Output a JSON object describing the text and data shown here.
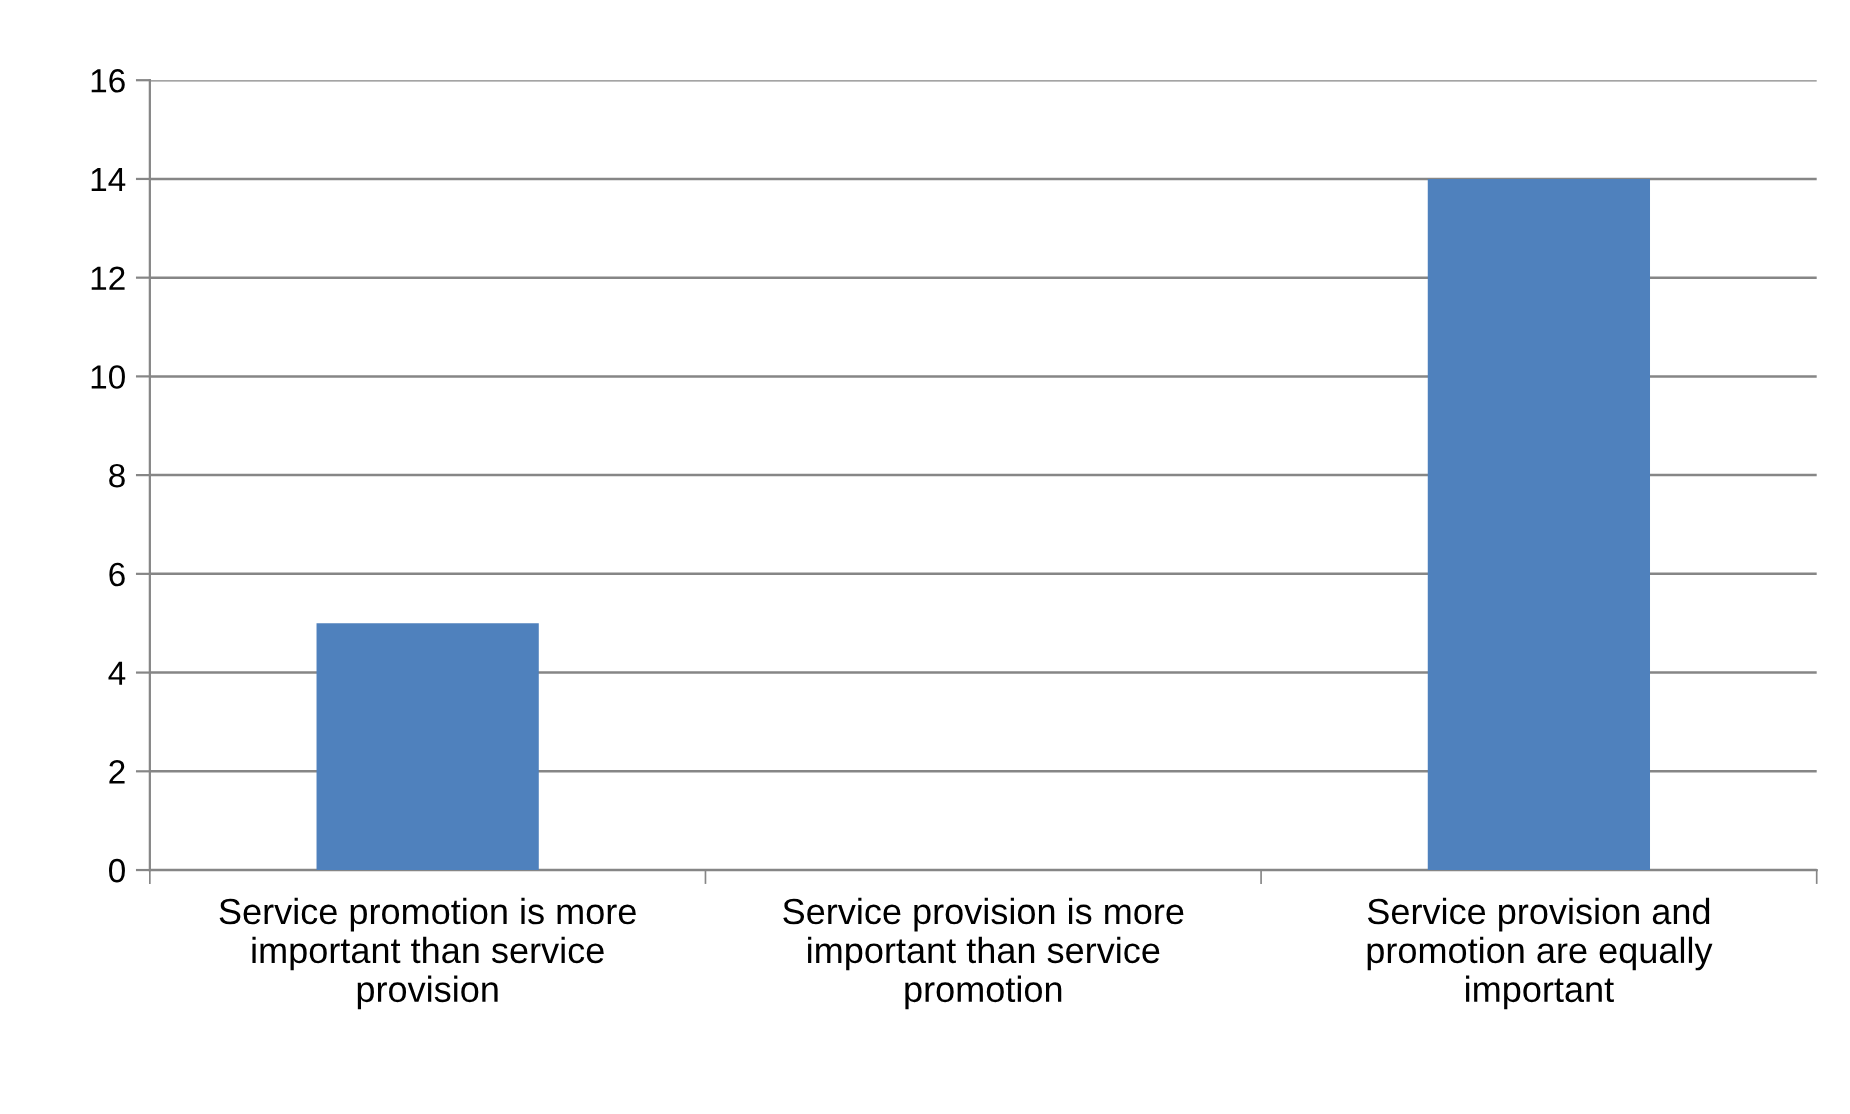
{
  "chart_data": {
    "type": "bar",
    "categories": [
      "Service promotion is more important than service provision",
      "Service provision is more important than service promotion",
      "Service provision and promotion are equally important"
    ],
    "values": [
      5,
      0,
      14
    ],
    "color": "#4f81bd",
    "ylim": [
      0,
      16
    ],
    "yticks": [
      0,
      2,
      4,
      6,
      8,
      10,
      12,
      14,
      16
    ],
    "grid": "y",
    "legend": false
  }
}
